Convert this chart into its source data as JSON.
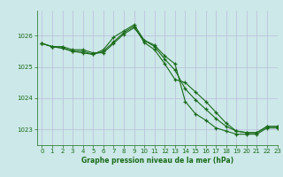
{
  "title": "Graphe pression niveau de la mer (hPa)",
  "bg_color": "#cce8e8",
  "grid_color": "#bbbbdd",
  "line_color": "#1a6b1a",
  "xlim": [
    -0.5,
    23
  ],
  "ylim": [
    1022.5,
    1026.8
  ],
  "yticks": [
    1023,
    1024,
    1025,
    1026
  ],
  "xticks": [
    0,
    1,
    2,
    3,
    4,
    5,
    6,
    7,
    8,
    9,
    10,
    11,
    12,
    13,
    14,
    15,
    16,
    17,
    18,
    19,
    20,
    21,
    22,
    23
  ],
  "series": [
    [
      1025.75,
      1025.65,
      1025.65,
      1025.55,
      1025.55,
      1025.45,
      1025.45,
      1025.75,
      1026.05,
      1026.25,
      1025.85,
      1025.7,
      1025.35,
      1025.1,
      1023.9,
      1023.5,
      1023.3,
      1023.05,
      1022.95,
      1022.85,
      1022.85,
      1022.85,
      1023.05,
      1023.05
    ],
    [
      1025.75,
      1025.65,
      1025.6,
      1025.5,
      1025.5,
      1025.4,
      1025.55,
      1025.95,
      1026.15,
      1026.35,
      1025.85,
      1025.65,
      1025.25,
      1024.9,
      1024.3,
      1023.95,
      1023.65,
      1023.35,
      1023.1,
      1022.95,
      1022.9,
      1022.9,
      1023.1,
      1023.1
    ],
    [
      1025.75,
      1025.65,
      1025.6,
      1025.5,
      1025.45,
      1025.4,
      1025.5,
      1025.8,
      1026.1,
      1026.3,
      1025.78,
      1025.55,
      1025.1,
      1024.6,
      1024.5,
      1024.2,
      1023.9,
      1023.55,
      1023.2,
      1022.95,
      1022.9,
      1022.9,
      1023.1,
      1023.1
    ]
  ]
}
